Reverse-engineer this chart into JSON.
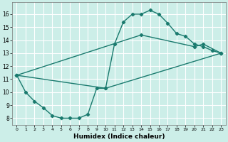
{
  "xlabel": "Humidex (Indice chaleur)",
  "bg_color": "#cceee8",
  "grid_color": "#ffffff",
  "line_color": "#1a7a6e",
  "marker": "D",
  "markersize": 2.2,
  "linewidth": 1.0,
  "xlim": [
    -0.5,
    23.5
  ],
  "ylim": [
    7.5,
    16.9
  ],
  "xticks": [
    0,
    1,
    2,
    3,
    4,
    5,
    6,
    7,
    8,
    9,
    10,
    11,
    12,
    13,
    14,
    15,
    16,
    17,
    18,
    19,
    20,
    21,
    22,
    23
  ],
  "yticks": [
    8,
    9,
    10,
    11,
    12,
    13,
    14,
    15,
    16
  ],
  "series1_x": [
    0,
    1,
    2,
    3,
    4,
    5,
    6,
    7,
    8,
    9,
    10,
    11,
    12,
    13,
    14,
    15,
    16,
    17,
    18,
    19,
    20,
    21,
    22,
    23
  ],
  "series1_y": [
    11.3,
    10.0,
    9.3,
    8.8,
    8.2,
    8.0,
    8.0,
    8.0,
    8.3,
    10.3,
    10.3,
    13.7,
    15.4,
    16.0,
    16.0,
    16.3,
    16.0,
    15.3,
    14.5,
    14.3,
    13.7,
    13.5,
    13.2,
    13.0
  ],
  "series2_x": [
    0,
    10,
    23
  ],
  "series2_y": [
    11.3,
    10.3,
    13.0
  ],
  "series3_x": [
    0,
    14,
    20,
    21,
    23
  ],
  "series3_y": [
    11.3,
    14.4,
    13.5,
    13.7,
    13.0
  ]
}
